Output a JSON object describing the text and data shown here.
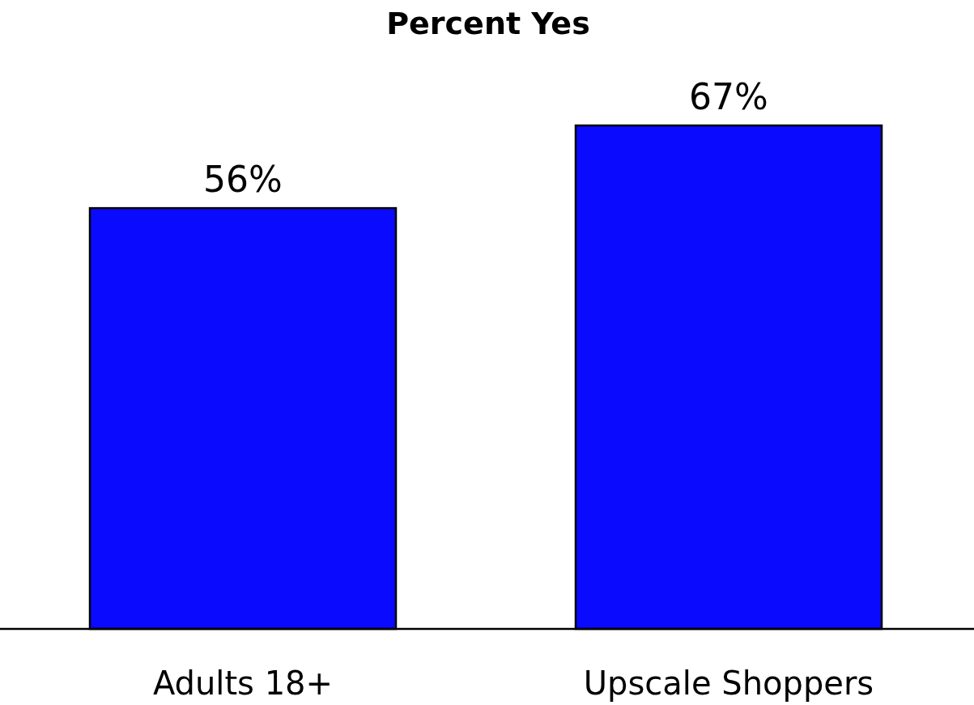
{
  "chart_data": {
    "type": "bar",
    "title": "Percent Yes",
    "categories": [
      "Adults 18+",
      "Upscale Shoppers"
    ],
    "values": [
      56,
      67
    ],
    "color": "#0a0aff",
    "value_labels": [
      "56%",
      "67%"
    ]
  }
}
